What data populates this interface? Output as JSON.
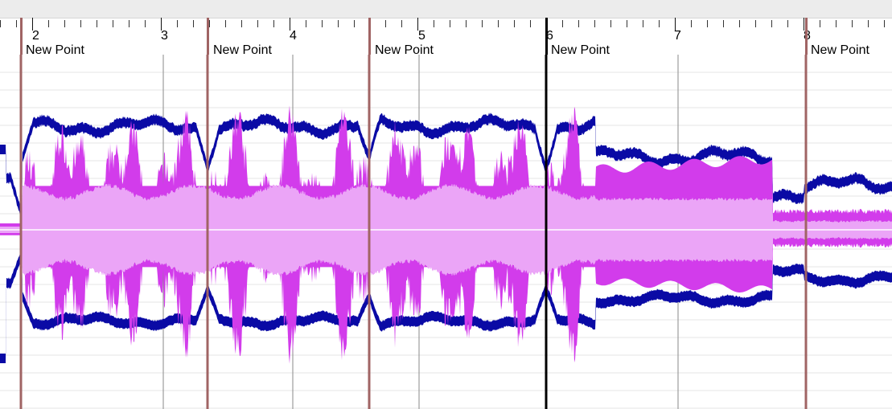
{
  "app": {
    "window_title": ""
  },
  "colors": {
    "outer_envelope": "#0a0aa5",
    "peak_fill": "#d23ceb",
    "rms_fill": "#eba5f7",
    "marker": "#a06464",
    "playhead": "#000000",
    "center_line": "#ffffff"
  },
  "timeline": {
    "bar_numbers": [
      "2",
      "3",
      "4",
      "5",
      "6",
      "7",
      "8"
    ]
  },
  "markers": [
    {
      "label": "New Point"
    },
    {
      "label": "New Point"
    },
    {
      "label": "New Point"
    },
    {
      "label": "New Point"
    },
    {
      "label": "New Point"
    }
  ],
  "waveform": {
    "description_icon": "audio-waveform"
  }
}
